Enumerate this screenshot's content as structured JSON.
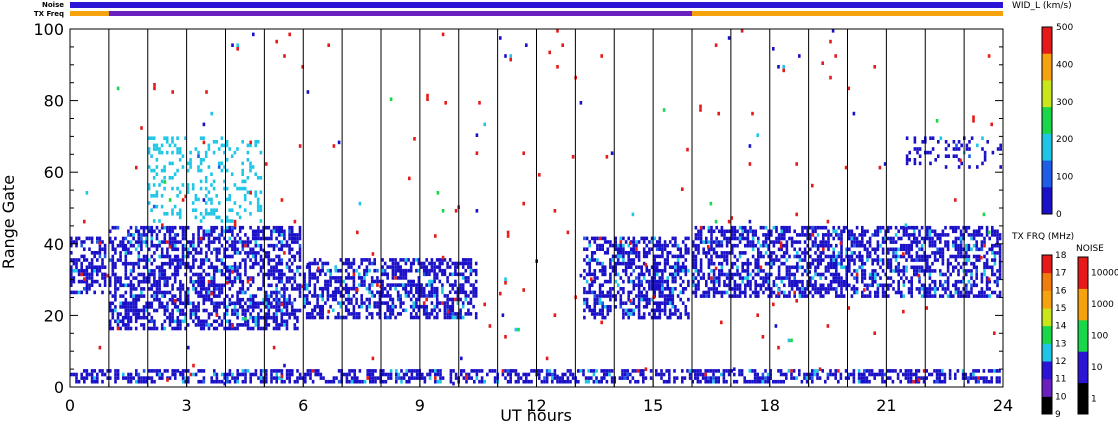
{
  "chart_data": {
    "type": "heatmap",
    "xlabel": "UT hours",
    "ylabel": "Range Gate",
    "xlim": [
      0,
      24
    ],
    "ylim": [
      0,
      100
    ],
    "x_ticks": [
      0,
      3,
      6,
      9,
      12,
      15,
      18,
      21,
      24
    ],
    "y_ticks": [
      0,
      20,
      40,
      60,
      80,
      100
    ],
    "hour_marker_lines": [
      1,
      2,
      3,
      4,
      5,
      6,
      7,
      8,
      9,
      10,
      11,
      12,
      13,
      14,
      15,
      16,
      17,
      18,
      19,
      20,
      21,
      22,
      23
    ],
    "status_bars": {
      "noise_label": "Noise",
      "txfreq_label": "TX Freq",
      "noise_color": "#2c14d6",
      "txfreq_segments": [
        {
          "from": 0,
          "to": 1,
          "color": "#f5a20c"
        },
        {
          "from": 1,
          "to": 16,
          "color": "#6a1fbf"
        },
        {
          "from": 16,
          "to": 24,
          "color": "#f5a20c"
        }
      ]
    },
    "colorbar_width": {
      "title": "WID_L (km/s)",
      "min": 0,
      "max": 500,
      "ticks": [
        0,
        100,
        200,
        300,
        400,
        500
      ],
      "colors": [
        "#1a10c8",
        "#1f5de6",
        "#1fc6e6",
        "#18d84a",
        "#c8e61a",
        "#f5a20c",
        "#e61a1a"
      ]
    },
    "colorbar_txfreq": {
      "title": "TX FRQ (MHz)",
      "ticks": [
        9,
        10,
        11,
        12,
        13,
        14,
        15,
        16,
        17,
        18
      ],
      "colors": [
        "#000000",
        "#6a1fbf",
        "#2c14d6",
        "#1fc6e6",
        "#18d84a",
        "#c8e61a",
        "#f5a20c",
        "#f07d0c",
        "#e61a1a"
      ]
    },
    "colorbar_noise": {
      "title": "NOISE",
      "ticks": [
        1,
        10,
        100,
        1000,
        10000
      ],
      "colors": [
        "#000000",
        "#2c14d6",
        "#18d84a",
        "#f5a20c",
        "#e61a1a"
      ]
    },
    "scatter_regions": [
      {
        "name": "near-range band",
        "x": [
          0,
          24
        ],
        "y": [
          0,
          5
        ],
        "density": "high",
        "color": "#1a10c8"
      },
      {
        "name": "main echo band early",
        "x": [
          0,
          1
        ],
        "y": [
          25,
          42
        ],
        "density": "high",
        "color": "#1a10c8"
      },
      {
        "name": "main echo band rise",
        "x": [
          1,
          6
        ],
        "y": [
          15,
          45
        ],
        "density": "high",
        "color": "#1a10c8"
      },
      {
        "name": "upper patch",
        "x": [
          2,
          5
        ],
        "y": [
          45,
          70
        ],
        "density": "medium",
        "color": "#1fc6e6"
      },
      {
        "name": "descending band",
        "x": [
          6,
          10.5
        ],
        "y": [
          18,
          36
        ],
        "density": "high",
        "color": "#1a10c8"
      },
      {
        "name": "afternoon band",
        "x": [
          13.2,
          16
        ],
        "y": [
          18,
          42
        ],
        "density": "high",
        "color": "#1a10c8"
      },
      {
        "name": "evening band",
        "x": [
          16,
          24
        ],
        "y": [
          24,
          45
        ],
        "density": "high",
        "color": "#1a10c8"
      },
      {
        "name": "late patch",
        "x": [
          21.5,
          24
        ],
        "y": [
          60,
          70
        ],
        "density": "medium",
        "color": "#1a10c8"
      },
      {
        "name": "sparse high width",
        "x": [
          0,
          24
        ],
        "y": [
          0,
          100
        ],
        "density": "low",
        "color": "#e61a1a"
      }
    ]
  }
}
